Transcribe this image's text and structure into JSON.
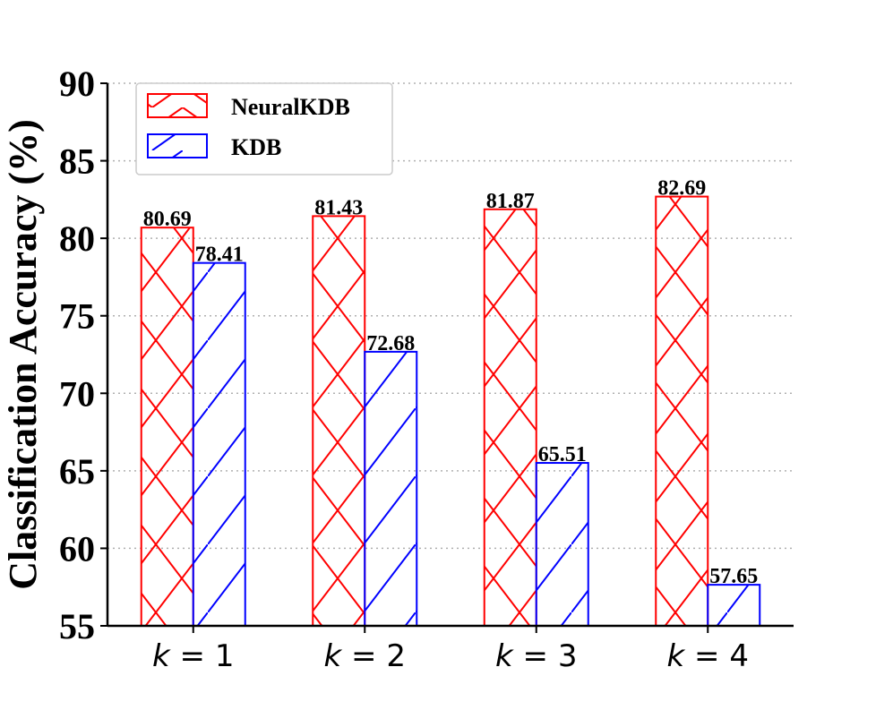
{
  "chart_data": {
    "type": "bar",
    "categories": [
      "k = 1",
      "k = 2",
      "k = 3",
      "k = 4"
    ],
    "series": [
      {
        "name": "NeuralKDB",
        "values": [
          80.69,
          81.43,
          81.87,
          82.69
        ],
        "color": "#ff0000",
        "hatch": "cross"
      },
      {
        "name": "KDB",
        "values": [
          78.41,
          72.68,
          65.51,
          57.65
        ],
        "color": "#0000ff",
        "hatch": "diagonal"
      }
    ],
    "data_labels": [
      [
        "80.69",
        "81.43",
        "81.87",
        "82.69"
      ],
      [
        "78.41",
        "72.68",
        "65.51",
        "57.65"
      ]
    ],
    "xlabel": "",
    "ylabel": "Classification Accuracy (%)",
    "ylim": [
      55,
      90
    ],
    "yticks": [
      55,
      60,
      65,
      70,
      75,
      80,
      85,
      90
    ],
    "grid": "horizontal dotted",
    "legend_position": "top-left"
  }
}
